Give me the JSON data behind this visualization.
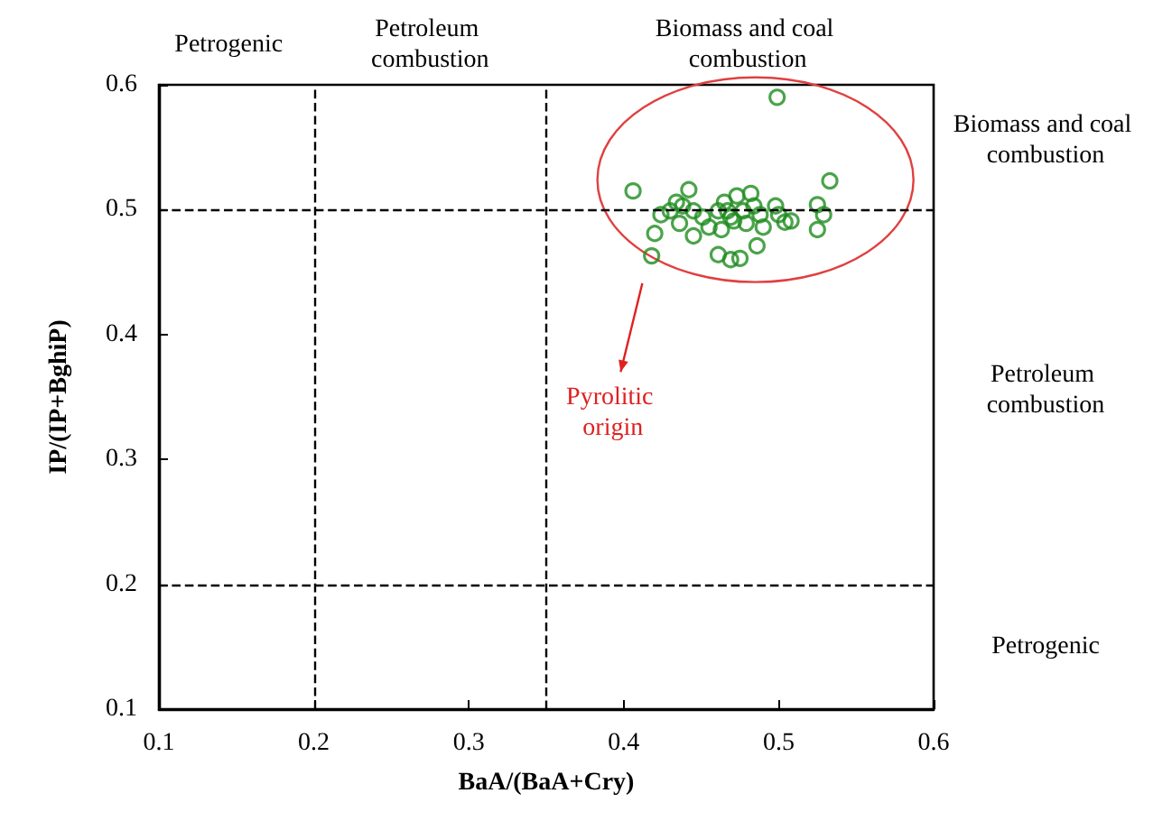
{
  "chart_data": {
    "type": "scatter",
    "xlabel": "BaA/(BaA+Cry)",
    "ylabel": "IP/(IP+BghiP)",
    "x": [
      0.499,
      0.406,
      0.533,
      0.442,
      0.424,
      0.42,
      0.418,
      0.434,
      0.436,
      0.445,
      0.445,
      0.455,
      0.461,
      0.465,
      0.469,
      0.473,
      0.477,
      0.482,
      0.484,
      0.488,
      0.49,
      0.486,
      0.461,
      0.469,
      0.475,
      0.498,
      0.5,
      0.504,
      0.508,
      0.525,
      0.529,
      0.525,
      0.467,
      0.471,
      0.479,
      0.463,
      0.451,
      0.438,
      0.43
    ],
    "series": [
      {
        "color": "#1e8c1e",
        "values": [
          0.59,
          0.515,
          0.523,
          0.516,
          0.496,
          0.481,
          0.463,
          0.506,
          0.489,
          0.499,
          0.479,
          0.486,
          0.499,
          0.506,
          0.494,
          0.511,
          0.499,
          0.513,
          0.503,
          0.496,
          0.486,
          0.471,
          0.464,
          0.46,
          0.461,
          0.503,
          0.496,
          0.49,
          0.491,
          0.504,
          0.496,
          0.484,
          0.499,
          0.491,
          0.489,
          0.484,
          0.494,
          0.503,
          0.499
        ]
      }
    ],
    "marker": "circle",
    "grid": false,
    "xlim": [
      0.1,
      0.6
    ],
    "xticks": [
      0.1,
      0.2,
      0.3,
      0.4,
      0.5,
      0.6
    ],
    "ylim": [
      0.1,
      0.6
    ],
    "yticks": [
      0.1,
      0.2,
      0.3,
      0.4,
      0.5,
      0.6
    ],
    "ref_lines": [
      {
        "axis": "x",
        "value": 0.2,
        "line_style": "dashed"
      },
      {
        "axis": "x",
        "value": 0.35,
        "line_style": "dashed"
      },
      {
        "axis": "y",
        "value": 0.5,
        "line_style": "dashed"
      },
      {
        "axis": "y",
        "value": 0.2,
        "line_style": "dashed"
      }
    ],
    "annotations": [
      "Petrogenic",
      "Petroleum combustion",
      "Biomass and coal combustion",
      "Biomass and coal combustion",
      "Petroleum combustion",
      "Petrogenic",
      "Pyrolitic origin"
    ]
  }
}
